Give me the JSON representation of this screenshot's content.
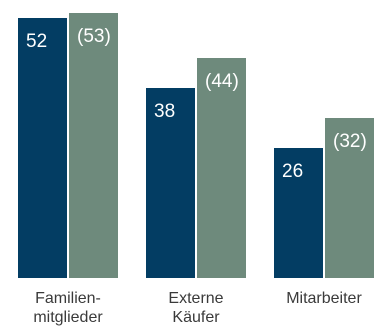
{
  "chart_data": {
    "type": "bar",
    "categories": [
      {
        "line1": "Familien-",
        "line2": "mitglieder"
      },
      {
        "line1": "Externe",
        "line2": "Käufer"
      },
      {
        "line1": "Mitarbeiter",
        "line2": ""
      }
    ],
    "series": [
      {
        "values": [
          52,
          38,
          26
        ],
        "labels": [
          "52",
          "38",
          "26"
        ],
        "color": "#033d63"
      },
      {
        "values": [
          53,
          44,
          32
        ],
        "labels": [
          "(53)",
          "(44)",
          "(32)"
        ],
        "color": "#6e8a7c"
      }
    ],
    "ylim": [
      0,
      53
    ],
    "grid": false,
    "legend": "none"
  }
}
